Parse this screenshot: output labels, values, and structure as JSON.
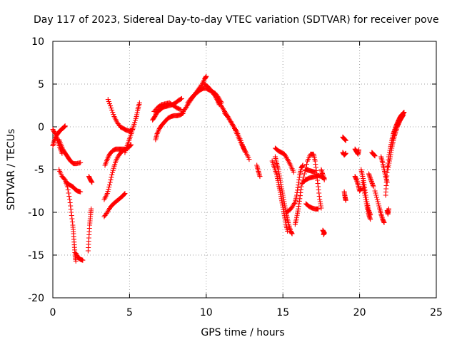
{
  "chart_data": {
    "type": "scatter",
    "title": "Day 117 of 2023, Sidereal Day-to-day VTEC variation (SDTVAR) for receiver pove",
    "xlabel": "GPS time / hours",
    "ylabel": "SDTVAR / TECUs",
    "xlim": [
      0,
      25
    ],
    "ylim": [
      -20,
      10
    ],
    "xticks": [
      0,
      5,
      10,
      15,
      20,
      25
    ],
    "yticks": [
      -20,
      -15,
      -10,
      -5,
      0,
      5,
      10
    ],
    "xtick_labels": [
      "0",
      "5",
      "10",
      "15",
      "20",
      "25"
    ],
    "ytick_labels": [
      "-20",
      "-15",
      "-10",
      "-5",
      "0",
      "5",
      "10"
    ],
    "grid": true,
    "marker": "+",
    "color": "#ff0000",
    "segments": [
      [
        [
          0.0,
          -0.3
        ],
        [
          0.15,
          -0.8
        ],
        [
          0.3,
          -1.6
        ],
        [
          0.45,
          -2.4
        ],
        [
          0.6,
          -3.1
        ]
      ],
      [
        [
          0.0,
          -2.2
        ],
        [
          0.1,
          -1.6
        ],
        [
          0.25,
          -1.0
        ],
        [
          0.4,
          -0.6
        ],
        [
          0.55,
          -0.3
        ],
        [
          0.7,
          -0.1
        ],
        [
          0.8,
          0.1
        ]
      ],
      [
        [
          0.4,
          -1.5
        ],
        [
          0.55,
          -2.2
        ],
        [
          0.7,
          -2.8
        ],
        [
          0.85,
          -3.2
        ],
        [
          1.0,
          -3.6
        ],
        [
          1.15,
          -4.0
        ],
        [
          1.35,
          -4.3
        ],
        [
          1.55,
          -4.3
        ],
        [
          1.8,
          -4.2
        ]
      ],
      [
        [
          0.4,
          -5.0
        ],
        [
          0.6,
          -5.8
        ],
        [
          0.8,
          -6.2
        ],
        [
          0.95,
          -7.0
        ],
        [
          1.1,
          -8.5
        ],
        [
          1.2,
          -10.0
        ],
        [
          1.3,
          -11.5
        ],
        [
          1.35,
          -12.5
        ],
        [
          1.4,
          -13.8
        ],
        [
          1.45,
          -15.0
        ],
        [
          1.5,
          -15.7
        ]
      ],
      [
        [
          0.9,
          -6.5
        ],
        [
          1.1,
          -6.8
        ],
        [
          1.3,
          -7.0
        ],
        [
          1.45,
          -7.3
        ],
        [
          1.6,
          -7.5
        ],
        [
          1.8,
          -7.6
        ]
      ],
      [
        [
          1.5,
          -14.8
        ],
        [
          1.65,
          -15.3
        ],
        [
          1.8,
          -15.5
        ],
        [
          1.95,
          -15.6
        ]
      ],
      [
        [
          2.3,
          -14.5
        ],
        [
          2.35,
          -13.0
        ],
        [
          2.4,
          -11.5
        ],
        [
          2.45,
          -10.5
        ],
        [
          2.5,
          -9.6
        ]
      ],
      [
        [
          2.35,
          -5.8
        ],
        [
          2.45,
          -6.2
        ],
        [
          2.55,
          -6.5
        ]
      ],
      [
        [
          3.35,
          -10.5
        ],
        [
          3.55,
          -10.0
        ],
        [
          3.75,
          -9.4
        ],
        [
          3.95,
          -9.0
        ],
        [
          4.15,
          -8.7
        ],
        [
          4.35,
          -8.4
        ],
        [
          4.55,
          -8.1
        ],
        [
          4.7,
          -7.8
        ]
      ],
      [
        [
          3.35,
          -8.5
        ],
        [
          3.55,
          -7.8
        ],
        [
          3.7,
          -6.8
        ],
        [
          3.85,
          -5.6
        ],
        [
          4.0,
          -4.6
        ],
        [
          4.15,
          -3.8
        ],
        [
          4.35,
          -3.2
        ],
        [
          4.55,
          -2.8
        ],
        [
          4.75,
          -2.6
        ],
        [
          4.95,
          -2.4
        ],
        [
          5.1,
          -2.1
        ]
      ],
      [
        [
          3.4,
          -4.5
        ],
        [
          3.55,
          -3.8
        ],
        [
          3.7,
          -3.2
        ],
        [
          3.9,
          -2.8
        ],
        [
          4.1,
          -2.6
        ],
        [
          4.3,
          -2.6
        ],
        [
          4.5,
          -2.6
        ],
        [
          4.7,
          -2.6
        ]
      ],
      [
        [
          3.6,
          3.2
        ],
        [
          3.8,
          2.2
        ],
        [
          4.0,
          1.2
        ],
        [
          4.2,
          0.5
        ],
        [
          4.4,
          0.0
        ],
        [
          4.6,
          -0.2
        ],
        [
          4.8,
          -0.4
        ],
        [
          5.0,
          -0.5
        ],
        [
          5.2,
          -0.3
        ]
      ],
      [
        [
          4.7,
          -3.0
        ],
        [
          4.85,
          -2.2
        ],
        [
          5.0,
          -1.4
        ],
        [
          5.15,
          -0.6
        ],
        [
          5.3,
          0.3
        ],
        [
          5.45,
          1.2
        ],
        [
          5.55,
          2.1
        ],
        [
          5.65,
          2.8
        ]
      ],
      [
        [
          6.7,
          -1.5
        ],
        [
          6.8,
          -0.8
        ],
        [
          6.95,
          -0.2
        ],
        [
          7.1,
          0.2
        ],
        [
          7.3,
          0.6
        ],
        [
          7.5,
          1.0
        ],
        [
          7.7,
          1.2
        ],
        [
          7.9,
          1.3
        ],
        [
          8.1,
          1.3
        ],
        [
          8.3,
          1.4
        ],
        [
          8.5,
          1.6
        ]
      ],
      [
        [
          6.5,
          0.8
        ],
        [
          6.65,
          1.2
        ],
        [
          6.8,
          1.7
        ],
        [
          7.0,
          2.0
        ],
        [
          7.2,
          2.3
        ],
        [
          7.4,
          2.4
        ],
        [
          7.6,
          2.5
        ],
        [
          7.8,
          2.6
        ],
        [
          8.0,
          2.8
        ],
        [
          8.2,
          3.1
        ],
        [
          8.4,
          3.3
        ]
      ],
      [
        [
          6.6,
          1.8
        ],
        [
          6.85,
          2.3
        ],
        [
          7.1,
          2.6
        ],
        [
          7.35,
          2.7
        ],
        [
          7.6,
          2.8
        ],
        [
          7.85,
          2.5
        ],
        [
          8.1,
          2.2
        ],
        [
          8.35,
          2.0
        ]
      ],
      [
        [
          8.5,
          1.8
        ],
        [
          8.7,
          2.3
        ],
        [
          8.9,
          2.9
        ],
        [
          9.1,
          3.4
        ],
        [
          9.3,
          3.9
        ],
        [
          9.5,
          4.4
        ],
        [
          9.7,
          4.9
        ],
        [
          9.9,
          5.6
        ],
        [
          10.0,
          5.9
        ]
      ],
      [
        [
          8.8,
          2.8
        ],
        [
          9.0,
          3.3
        ],
        [
          9.2,
          3.7
        ],
        [
          9.4,
          4.0
        ],
        [
          9.6,
          4.3
        ],
        [
          9.8,
          4.5
        ],
        [
          10.0,
          4.5
        ],
        [
          10.2,
          4.3
        ],
        [
          10.4,
          4.1
        ],
        [
          10.6,
          3.9
        ],
        [
          10.8,
          3.4
        ],
        [
          11.0,
          2.8
        ]
      ],
      [
        [
          9.9,
          5.0
        ],
        [
          10.1,
          4.7
        ],
        [
          10.3,
          4.3
        ],
        [
          10.5,
          3.8
        ],
        [
          10.7,
          3.2
        ],
        [
          10.85,
          2.6
        ]
      ],
      [
        [
          10.8,
          3.0
        ],
        [
          11.0,
          2.4
        ],
        [
          11.2,
          1.8
        ],
        [
          11.4,
          1.2
        ],
        [
          11.6,
          0.6
        ],
        [
          11.8,
          0.0
        ],
        [
          12.0,
          -0.6
        ],
        [
          12.2,
          -1.4
        ],
        [
          12.4,
          -2.3
        ],
        [
          12.55,
          -3.0
        ]
      ],
      [
        [
          11.2,
          1.6
        ],
        [
          11.4,
          1.2
        ],
        [
          11.6,
          0.6
        ],
        [
          11.8,
          0.0
        ],
        [
          12.0,
          -0.8
        ],
        [
          12.2,
          -1.6
        ],
        [
          12.4,
          -2.4
        ],
        [
          12.6,
          -3.0
        ],
        [
          12.8,
          -3.8
        ]
      ],
      [
        [
          13.3,
          -4.5
        ],
        [
          13.4,
          -5.2
        ],
        [
          13.5,
          -5.8
        ]
      ],
      [
        [
          14.5,
          -2.5
        ],
        [
          14.7,
          -2.8
        ],
        [
          14.9,
          -3.0
        ],
        [
          15.1,
          -3.2
        ],
        [
          15.3,
          -3.8
        ],
        [
          15.5,
          -4.5
        ],
        [
          15.7,
          -5.3
        ]
      ],
      [
        [
          14.5,
          -3.5
        ],
        [
          14.6,
          -4.3
        ],
        [
          14.7,
          -5.0
        ],
        [
          14.8,
          -6.0
        ],
        [
          14.9,
          -7.0
        ],
        [
          15.0,
          -8.0
        ],
        [
          15.1,
          -9.0
        ],
        [
          15.2,
          -10.0
        ],
        [
          15.3,
          -10.8
        ],
        [
          15.4,
          -11.6
        ],
        [
          15.5,
          -12.2
        ],
        [
          15.6,
          -12.5
        ]
      ],
      [
        [
          14.3,
          -4.0
        ],
        [
          14.45,
          -4.8
        ],
        [
          14.6,
          -5.6
        ],
        [
          14.7,
          -6.5
        ],
        [
          14.8,
          -7.4
        ],
        [
          14.9,
          -8.4
        ],
        [
          15.0,
          -9.4
        ],
        [
          15.1,
          -10.4
        ],
        [
          15.2,
          -11.4
        ],
        [
          15.3,
          -12.2
        ]
      ],
      [
        [
          15.2,
          -10.0
        ],
        [
          15.4,
          -9.8
        ],
        [
          15.6,
          -9.4
        ],
        [
          15.8,
          -8.8
        ],
        [
          15.9,
          -8.0
        ],
        [
          16.0,
          -6.8
        ],
        [
          16.1,
          -5.6
        ],
        [
          16.2,
          -4.8
        ],
        [
          16.3,
          -4.5
        ]
      ],
      [
        [
          15.8,
          -11.4
        ],
        [
          15.9,
          -10.6
        ],
        [
          16.0,
          -9.6
        ],
        [
          16.1,
          -8.4
        ],
        [
          16.2,
          -7.0
        ],
        [
          16.4,
          -5.5
        ],
        [
          16.6,
          -4.0
        ],
        [
          16.8,
          -3.2
        ],
        [
          17.0,
          -3.2
        ],
        [
          17.1,
          -4.0
        ],
        [
          17.2,
          -5.5
        ],
        [
          17.3,
          -7.0
        ],
        [
          17.4,
          -8.5
        ],
        [
          17.5,
          -9.5
        ]
      ],
      [
        [
          16.5,
          -9.0
        ],
        [
          16.7,
          -9.3
        ],
        [
          16.9,
          -9.5
        ],
        [
          17.1,
          -9.6
        ],
        [
          17.3,
          -9.6
        ]
      ],
      [
        [
          16.3,
          -6.5
        ],
        [
          16.5,
          -6.2
        ],
        [
          16.7,
          -6.0
        ],
        [
          16.9,
          -5.9
        ],
        [
          17.1,
          -5.8
        ],
        [
          17.3,
          -5.7
        ],
        [
          17.5,
          -5.8
        ],
        [
          17.7,
          -6.0
        ]
      ],
      [
        [
          16.5,
          -5.0
        ],
        [
          16.7,
          -5.1
        ],
        [
          16.9,
          -5.2
        ],
        [
          17.1,
          -5.3
        ]
      ],
      [
        [
          17.5,
          -5.0
        ],
        [
          17.6,
          -5.6
        ],
        [
          17.7,
          -6.2
        ]
      ],
      [
        [
          17.6,
          -12.1
        ],
        [
          17.7,
          -12.4
        ],
        [
          17.65,
          -12.6
        ]
      ],
      [
        [
          18.9,
          -1.2
        ],
        [
          19.0,
          -1.4
        ],
        [
          19.1,
          -1.6
        ]
      ],
      [
        [
          18.9,
          -3.0
        ],
        [
          19.0,
          -3.3
        ],
        [
          19.1,
          -3.1
        ]
      ],
      [
        [
          19.0,
          -7.6
        ],
        [
          19.05,
          -8.2
        ],
        [
          19.1,
          -8.6
        ]
      ],
      [
        [
          19.7,
          -2.6
        ],
        [
          19.8,
          -2.9
        ],
        [
          19.9,
          -3.2
        ],
        [
          19.95,
          -2.7
        ]
      ],
      [
        [
          19.7,
          -5.8
        ],
        [
          19.8,
          -6.2
        ],
        [
          19.9,
          -6.8
        ],
        [
          20.0,
          -7.5
        ],
        [
          20.1,
          -7.2
        ]
      ],
      [
        [
          20.1,
          -5.0
        ],
        [
          20.2,
          -5.8
        ],
        [
          20.3,
          -6.8
        ],
        [
          20.4,
          -8.0
        ],
        [
          20.5,
          -9.0
        ],
        [
          20.6,
          -9.8
        ],
        [
          20.7,
          -10.3
        ]
      ],
      [
        [
          20.2,
          -6.5
        ],
        [
          20.3,
          -7.5
        ],
        [
          20.4,
          -8.5
        ],
        [
          20.5,
          -9.5
        ],
        [
          20.6,
          -10.3
        ],
        [
          20.7,
          -10.8
        ]
      ],
      [
        [
          20.6,
          -5.5
        ],
        [
          20.7,
          -6.0
        ],
        [
          20.8,
          -6.5
        ],
        [
          20.9,
          -7.0
        ]
      ],
      [
        [
          20.8,
          -3.0
        ],
        [
          20.9,
          -3.2
        ],
        [
          21.0,
          -3.4
        ]
      ],
      [
        [
          21.0,
          -7.5
        ],
        [
          21.15,
          -8.5
        ],
        [
          21.3,
          -9.5
        ],
        [
          21.4,
          -10.2
        ],
        [
          21.5,
          -10.8
        ],
        [
          21.6,
          -11.2
        ]
      ],
      [
        [
          21.4,
          -3.5
        ],
        [
          21.5,
          -4.2
        ],
        [
          21.6,
          -5.0
        ],
        [
          21.7,
          -5.8
        ],
        [
          21.8,
          -6.5
        ]
      ],
      [
        [
          21.8,
          -9.8
        ],
        [
          21.85,
          -10.2
        ],
        [
          21.9,
          -9.6
        ]
      ],
      [
        [
          21.7,
          -8.0
        ],
        [
          21.75,
          -6.5
        ],
        [
          21.8,
          -5.0
        ],
        [
          21.9,
          -3.5
        ],
        [
          22.0,
          -2.5
        ],
        [
          22.1,
          -1.6
        ],
        [
          22.2,
          -0.8
        ],
        [
          22.3,
          -0.3
        ],
        [
          22.4,
          0.2
        ],
        [
          22.5,
          0.6
        ],
        [
          22.6,
          1.0
        ],
        [
          22.7,
          1.3
        ],
        [
          22.8,
          1.5
        ],
        [
          22.9,
          1.7
        ]
      ],
      [
        [
          21.85,
          -5.0
        ],
        [
          21.95,
          -4.0
        ],
        [
          22.05,
          -3.0
        ],
        [
          22.15,
          -2.0
        ],
        [
          22.25,
          -1.2
        ],
        [
          22.35,
          -0.6
        ],
        [
          22.45,
          0.0
        ],
        [
          22.55,
          0.4
        ],
        [
          22.65,
          0.8
        ],
        [
          22.75,
          1.1
        ],
        [
          22.85,
          1.4
        ]
      ]
    ]
  }
}
